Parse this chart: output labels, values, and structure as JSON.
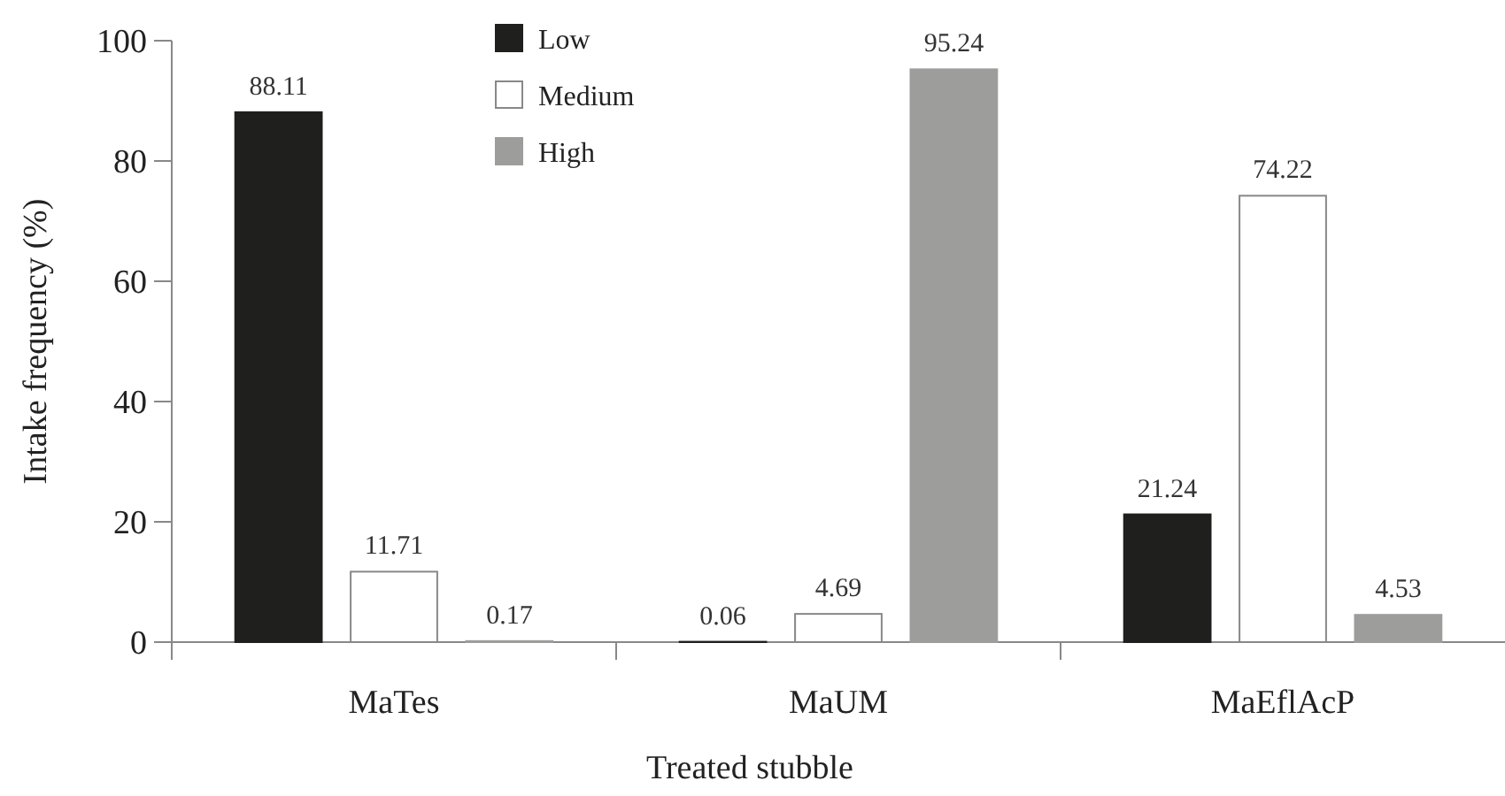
{
  "chart_data": {
    "type": "bar",
    "xlabel": "Treated stubble",
    "ylabel": "Intake frequency (%)",
    "categories": [
      "MaTes",
      "MaUM",
      "MaEflAcP"
    ],
    "series": [
      {
        "name": "Low",
        "color": "#1f1f1d",
        "values": [
          88.11,
          0.06,
          21.24
        ]
      },
      {
        "name": "Medium",
        "color": "#ffffff",
        "values": [
          11.71,
          4.69,
          74.22
        ]
      },
      {
        "name": "High",
        "color": "#9d9d9b",
        "values": [
          0.17,
          95.24,
          4.53
        ]
      }
    ],
    "ylim": [
      0,
      100
    ],
    "yticks": [
      0,
      20,
      40,
      60,
      80,
      100
    ],
    "data_labels": true,
    "legend": "top",
    "grid": false
  }
}
